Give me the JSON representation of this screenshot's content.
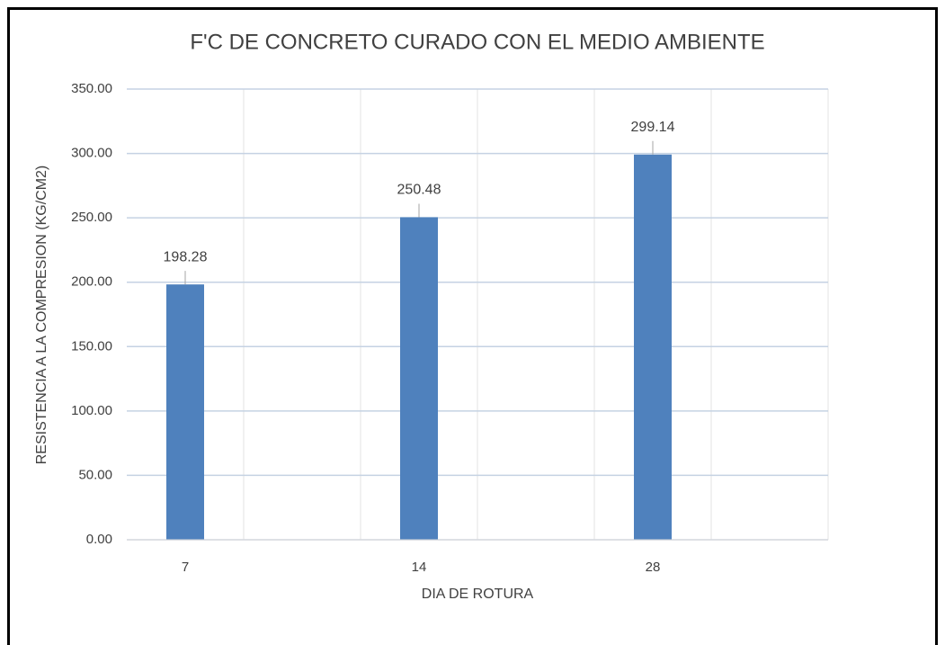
{
  "chart_data": {
    "type": "bar",
    "title": "F'C DE CONCRETO CURADO CON EL MEDIO AMBIENTE",
    "x_label": "DIA DE ROTURA",
    "y_label": "RESISTENCIA A LA COMPRESION (KG/CM2)",
    "categories": [
      "7",
      "14",
      "28"
    ],
    "values": [
      198.28,
      250.48,
      299.14
    ],
    "color": "#4f81bd",
    "ylim": [
      0,
      350
    ],
    "yticks": [
      {
        "value": 0,
        "label": "0.00"
      },
      {
        "value": 50,
        "label": "50.00"
      },
      {
        "value": 100,
        "label": "100.00"
      },
      {
        "value": 150,
        "label": "150.00"
      },
      {
        "value": 200,
        "label": "200.00"
      },
      {
        "value": 250,
        "label": "250.00"
      },
      {
        "value": 300,
        "label": "300.00"
      },
      {
        "value": 350,
        "label": "350.00"
      }
    ],
    "grid": true
  }
}
